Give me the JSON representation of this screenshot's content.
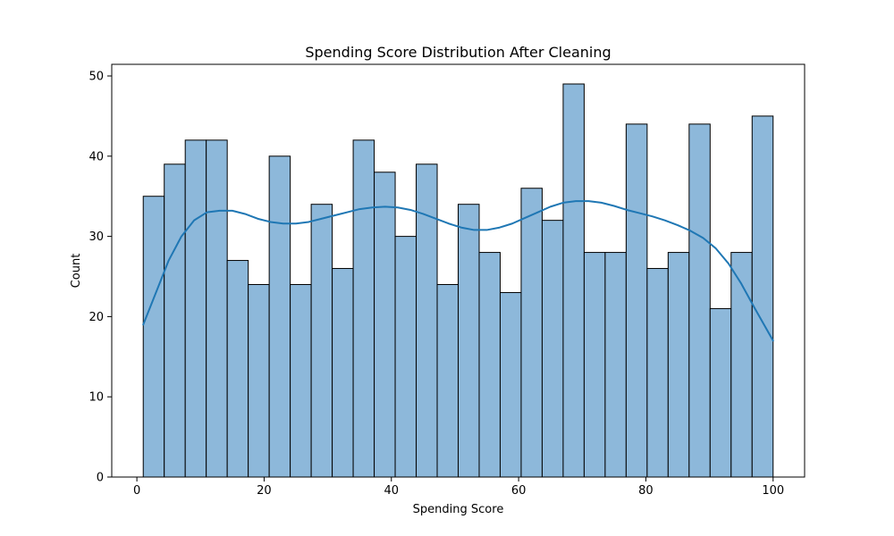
{
  "chart_data": {
    "type": "bar",
    "title": "Spending Score Distribution After Cleaning",
    "xlabel": "Spending Score",
    "ylabel": "Count",
    "xlim": [
      -3.95,
      104.95
    ],
    "ylim": [
      0,
      51.45
    ],
    "x_ticks": [
      0,
      20,
      40,
      60,
      80,
      100
    ],
    "y_ticks": [
      0,
      10,
      20,
      30,
      40,
      50
    ],
    "grid": false,
    "legend": "none",
    "bins": {
      "start": 1,
      "width": 3.3,
      "values": [
        35,
        39,
        42,
        42,
        27,
        24,
        40,
        24,
        34,
        26,
        42,
        38,
        30,
        39,
        24,
        34,
        28,
        23,
        36,
        32,
        49,
        28,
        28,
        44,
        26,
        28,
        44,
        21,
        28,
        45
      ]
    },
    "kde": {
      "x": [
        1,
        3,
        5,
        7,
        9,
        11,
        13,
        15,
        17,
        19,
        21,
        23,
        25,
        27,
        29,
        31,
        33,
        35,
        37,
        39,
        41,
        43,
        45,
        47,
        49,
        51,
        53,
        55,
        57,
        59,
        61,
        63,
        65,
        67,
        69,
        71,
        73,
        75,
        77,
        79,
        81,
        83,
        85,
        87,
        89,
        91,
        93,
        95,
        97,
        100
      ],
      "y": [
        19,
        23,
        27,
        30,
        32,
        33,
        33.2,
        33.2,
        32.8,
        32.2,
        31.8,
        31.6,
        31.6,
        31.8,
        32.2,
        32.6,
        33,
        33.4,
        33.6,
        33.7,
        33.6,
        33.3,
        32.8,
        32.2,
        31.6,
        31.1,
        30.8,
        30.8,
        31.1,
        31.6,
        32.3,
        33,
        33.7,
        34.2,
        34.4,
        34.4,
        34.2,
        33.8,
        33.3,
        32.9,
        32.5,
        32,
        31.4,
        30.7,
        29.8,
        28.5,
        26.6,
        24.1,
        21.2,
        17
      ]
    },
    "colors": {
      "bar_fill": "#8db8da",
      "bar_edge": "#000000",
      "kde_line": "#1f77b4",
      "axes": "#000000",
      "background": "#ffffff"
    }
  }
}
